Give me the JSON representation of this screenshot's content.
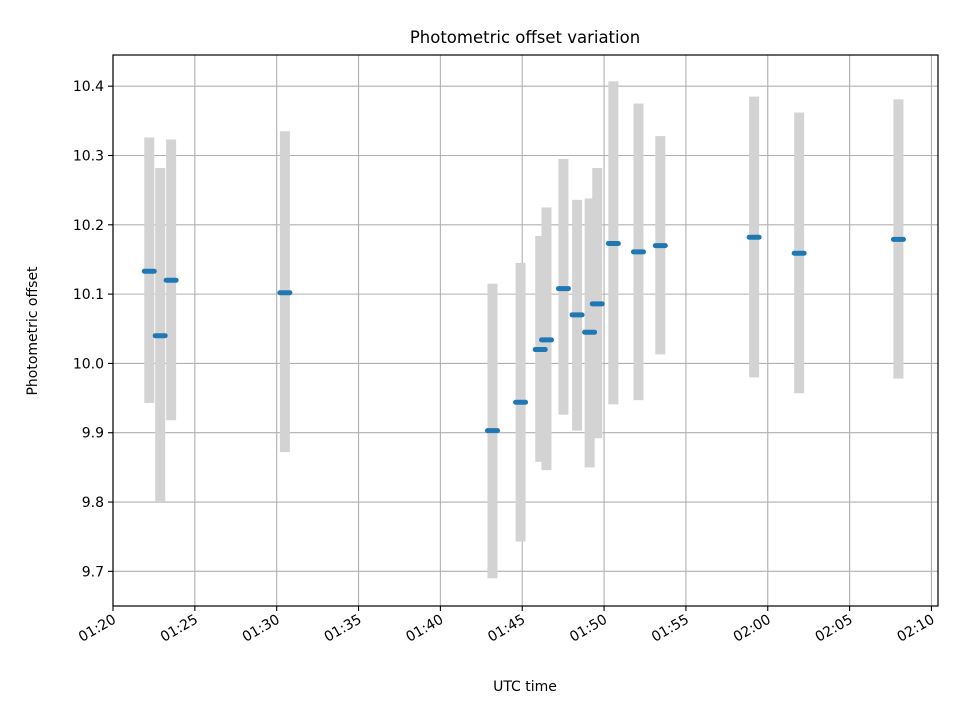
{
  "chart_data": {
    "type": "scatter",
    "title": "Photometric offset variation",
    "xlabel": "UTC time",
    "ylabel": "Photometric offset",
    "x_unit": "minutes",
    "xlim": [
      "01:20:00",
      "02:10:24"
    ],
    "ylim": [
      9.65,
      10.445
    ],
    "x_ticks": [
      "01:20",
      "01:25",
      "01:30",
      "01:35",
      "01:40",
      "01:45",
      "01:50",
      "01:55",
      "02:00",
      "02:05",
      "02:10"
    ],
    "y_ticks": [
      9.7,
      9.8,
      9.9,
      10.0,
      10.1,
      10.2,
      10.3,
      10.4
    ],
    "y_tick_labels": [
      "9.7",
      "9.8",
      "9.9",
      "10.0",
      "10.1",
      "10.2",
      "10.3",
      "10.4"
    ],
    "grid": true,
    "colors": {
      "marker": "#1f77b4",
      "errorbar": "#d3d3d3",
      "grid": "#b0b0b0"
    },
    "points": [
      {
        "time": "01:22:13",
        "y": 10.133,
        "ylow": 9.943,
        "yhigh": 10.326
      },
      {
        "time": "01:22:53",
        "y": 10.04,
        "ylow": 9.8,
        "yhigh": 10.282
      },
      {
        "time": "01:23:33",
        "y": 10.12,
        "ylow": 9.918,
        "yhigh": 10.323
      },
      {
        "time": "01:30:30",
        "y": 10.102,
        "ylow": 9.872,
        "yhigh": 10.335
      },
      {
        "time": "01:43:11",
        "y": 9.903,
        "ylow": 9.69,
        "yhigh": 10.115
      },
      {
        "time": "01:44:54",
        "y": 9.944,
        "ylow": 9.743,
        "yhigh": 10.145
      },
      {
        "time": "01:46:06",
        "y": 10.02,
        "ylow": 9.858,
        "yhigh": 10.184
      },
      {
        "time": "01:46:29",
        "y": 10.034,
        "ylow": 9.846,
        "yhigh": 10.225
      },
      {
        "time": "01:47:31",
        "y": 10.108,
        "ylow": 9.926,
        "yhigh": 10.295
      },
      {
        "time": "01:48:21",
        "y": 10.07,
        "ylow": 9.903,
        "yhigh": 10.236
      },
      {
        "time": "01:49:07",
        "y": 10.045,
        "ylow": 9.85,
        "yhigh": 10.238
      },
      {
        "time": "01:49:35",
        "y": 10.086,
        "ylow": 9.892,
        "yhigh": 10.282
      },
      {
        "time": "01:50:34",
        "y": 10.173,
        "ylow": 9.941,
        "yhigh": 10.407
      },
      {
        "time": "01:52:06",
        "y": 10.161,
        "ylow": 9.947,
        "yhigh": 10.375
      },
      {
        "time": "01:53:26",
        "y": 10.17,
        "ylow": 10.013,
        "yhigh": 10.328
      },
      {
        "time": "01:59:10",
        "y": 10.182,
        "ylow": 9.98,
        "yhigh": 10.385
      },
      {
        "time": "02:01:55",
        "y": 10.159,
        "ylow": 9.957,
        "yhigh": 10.362
      },
      {
        "time": "02:07:59",
        "y": 10.179,
        "ylow": 9.978,
        "yhigh": 10.381
      }
    ]
  }
}
